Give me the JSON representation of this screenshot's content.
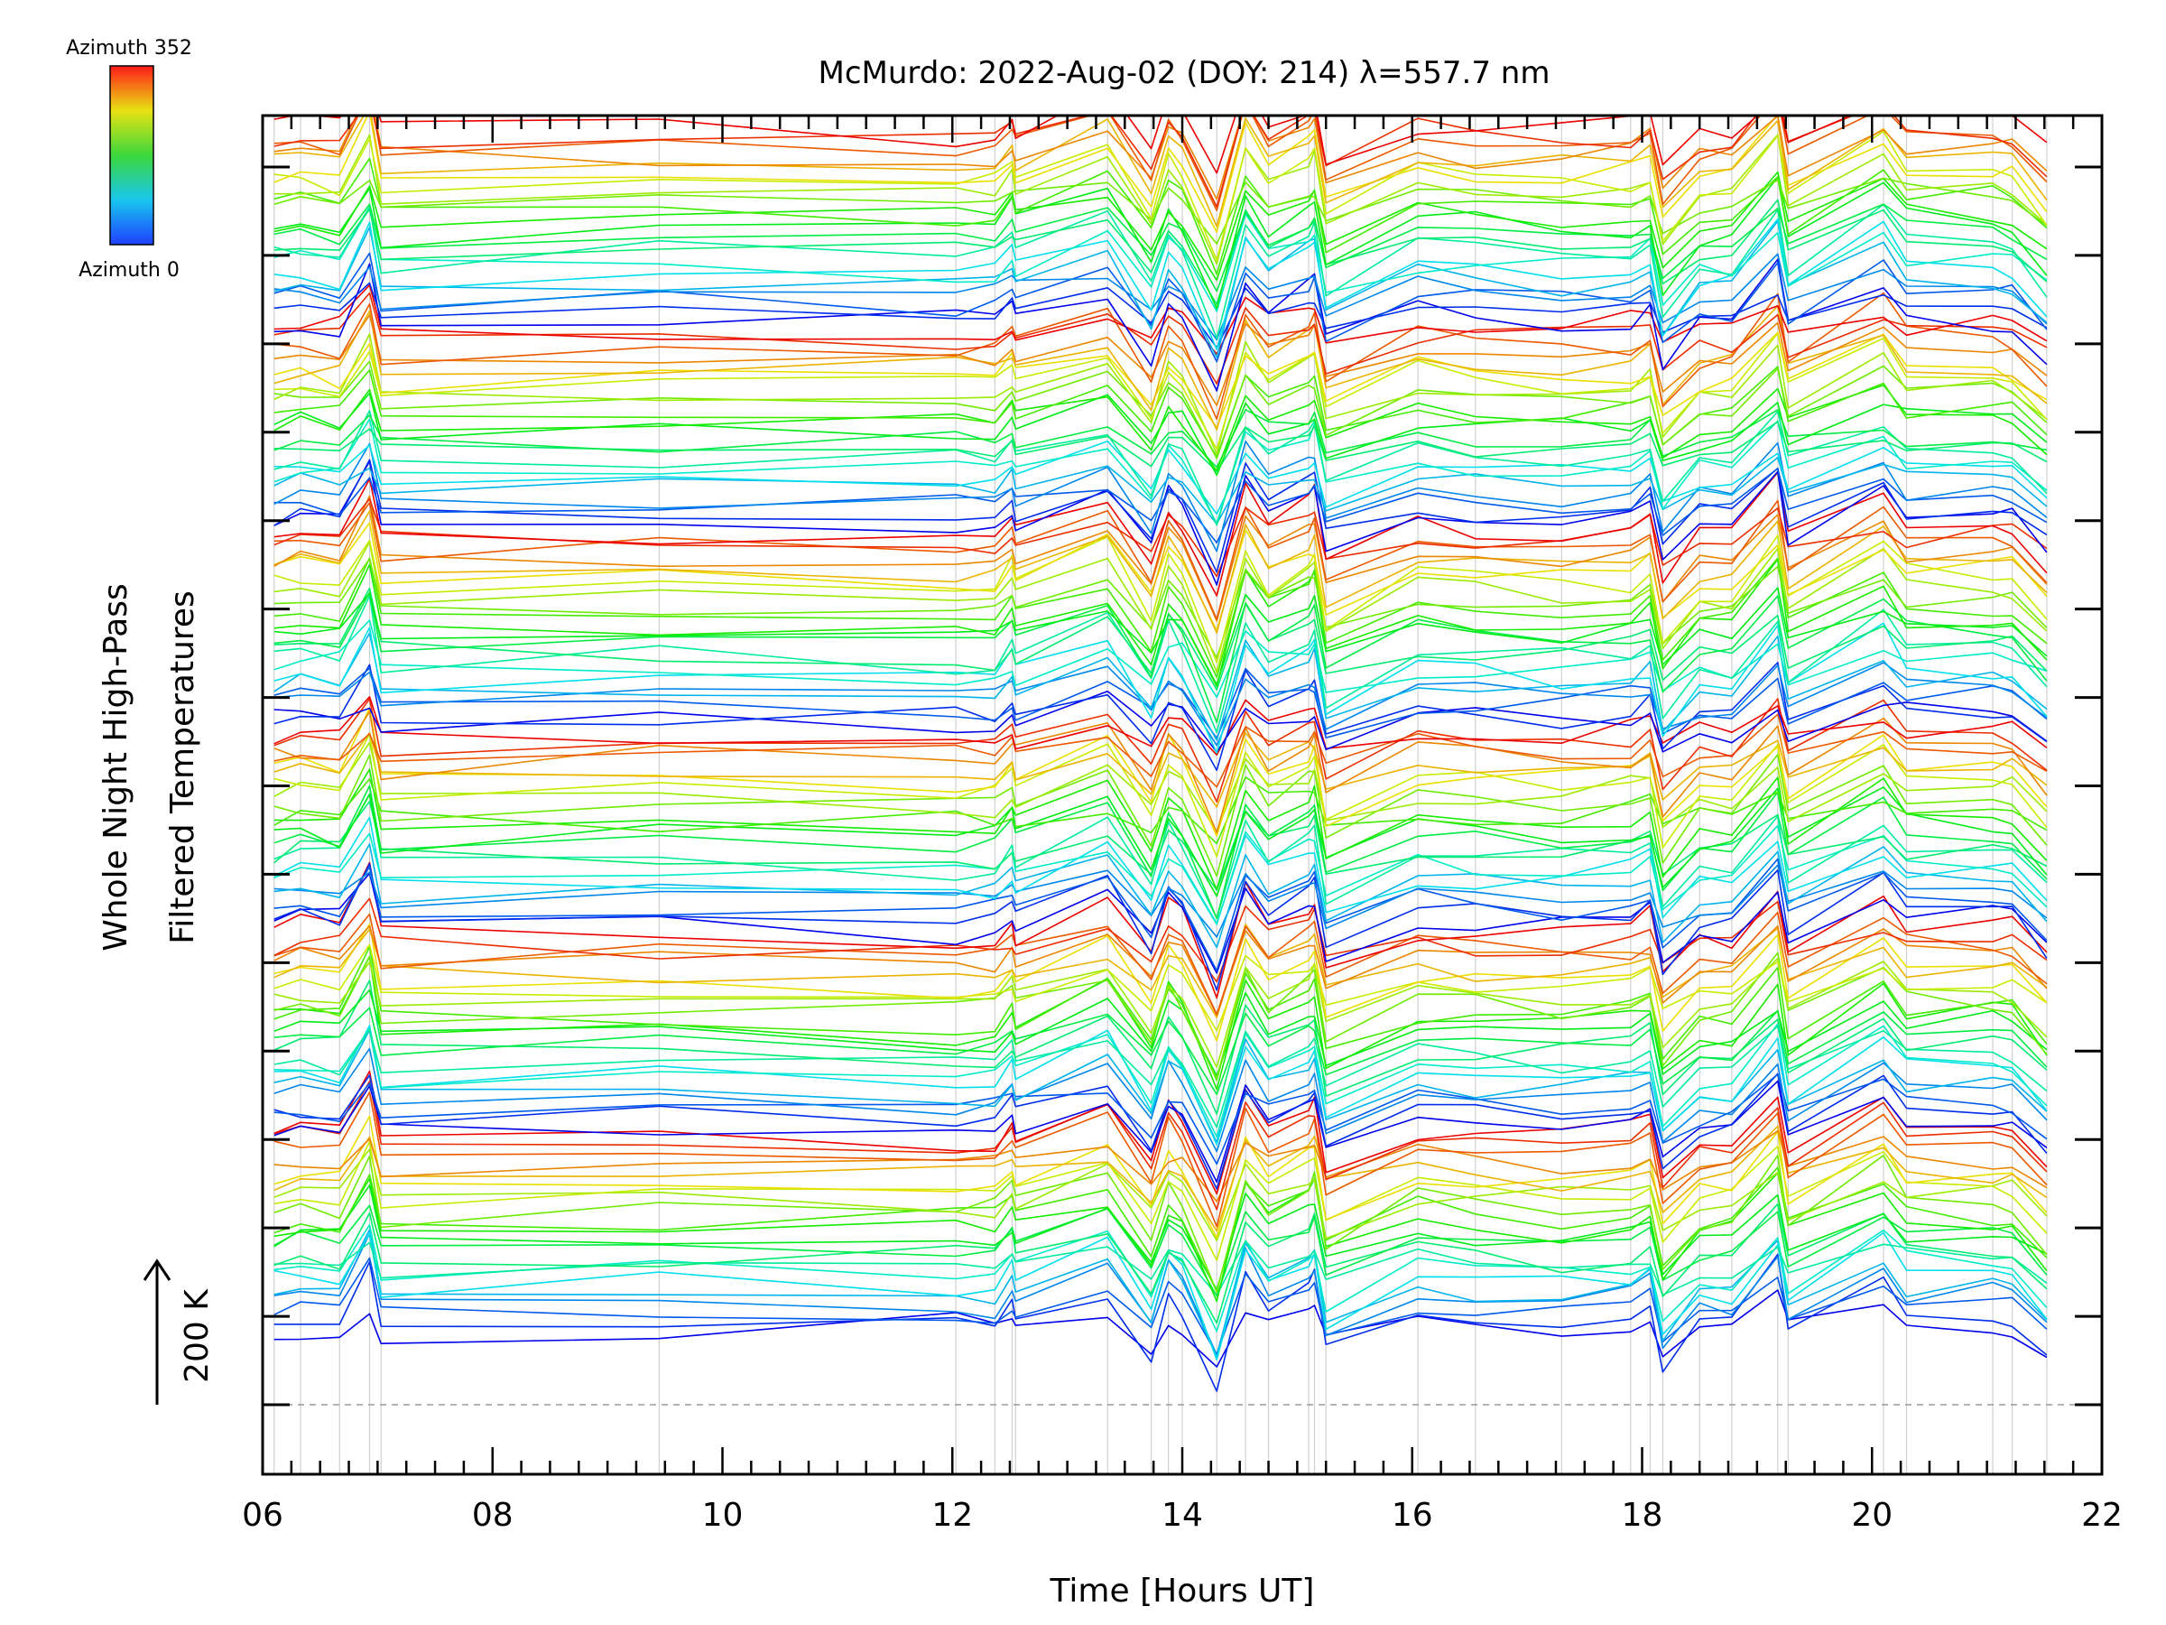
{
  "chart_data": {
    "type": "line",
    "title": "McMurdo: 2022-Aug-02 (DOY: 214) λ=557.7 nm",
    "xlabel": "Time [Hours UT]",
    "ylabel_line1": "Whole Night High-Pass",
    "ylabel_line2": "Filtered Temperatures",
    "scale_label": "200 K",
    "xlim": [
      6,
      22
    ],
    "x_tick_labels": [
      "06",
      "08",
      "10",
      "12",
      "14",
      "16",
      "18",
      "20",
      "22"
    ],
    "x_tick_values": [
      6,
      8,
      10,
      12,
      14,
      16,
      18,
      20,
      22
    ],
    "colorbar": {
      "top_label": "Azimuth 352",
      "bottom_label": "Azimuth 0",
      "colormap": "rainbow (blue-cyan-green-yellow-red)"
    },
    "sample_times": [
      6.1,
      6.33,
      6.67,
      6.93,
      7.03,
      9.45,
      12.03,
      12.37,
      12.52,
      12.55,
      13.35,
      13.73,
      13.88,
      14.0,
      14.3,
      14.55,
      14.75,
      15.1,
      15.15,
      15.25,
      16.05,
      16.55,
      17.3,
      17.9,
      18.07,
      18.18,
      18.5,
      18.78,
      19.18,
      19.27,
      20.1,
      20.3,
      21.05,
      21.22,
      21.52
    ],
    "series_groups": 6,
    "series_per_group": 22,
    "series_count": 132,
    "note": "Each line is one azimuth sector (0-352 deg), vertically offset by a constant; the arrow spans 200 K of temperature.",
    "colors": {
      "axis": "#000000",
      "grid": "#d0d0d0",
      "baseline": "#9a9a9a"
    }
  }
}
